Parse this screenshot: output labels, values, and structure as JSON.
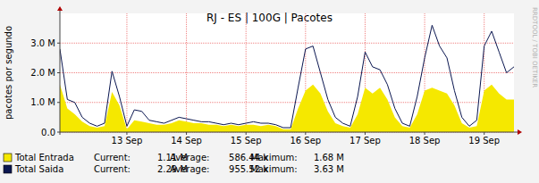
{
  "chart_data": {
    "type": "area",
    "title": "RJ - ES | 100G | Pacotes",
    "y_label": "pacotes por segundo",
    "side_text": "RRDTOOL / TOBI OETIKER",
    "categories": [
      null,
      null,
      null,
      null,
      null,
      null,
      null,
      null,
      null,
      "13 Sep",
      null,
      null,
      null,
      null,
      null,
      null,
      null,
      "14 Sep",
      null,
      null,
      null,
      null,
      null,
      null,
      null,
      "15 Sep",
      null,
      null,
      null,
      null,
      null,
      null,
      null,
      "16 Sep",
      null,
      null,
      null,
      null,
      null,
      null,
      null,
      "17 Sep",
      null,
      null,
      null,
      null,
      null,
      null,
      null,
      "18 Sep",
      null,
      null,
      null,
      null,
      null,
      null,
      null,
      "19 Sep",
      null,
      null,
      null,
      null
    ],
    "ylim": [
      0,
      4000000
    ],
    "yticks": [
      {
        "value": 0,
        "label": "0.0"
      },
      {
        "value": 1000000,
        "label": "1.0 M"
      },
      {
        "value": 2000000,
        "label": "2.0 M"
      },
      {
        "value": 3000000,
        "label": "3.0 M"
      }
    ],
    "grid": true,
    "legend": "bottom",
    "series": [
      {
        "name": "Total Entrada",
        "type": "area",
        "color": "#f5e800",
        "stats": [
          {
            "label": "Current:",
            "value": "1.11 M"
          },
          {
            "label": "Average:",
            "value": "586.44 k"
          },
          {
            "label": "Maximum:",
            "value": "1.68 M"
          }
        ],
        "values": [
          1600000,
          800000,
          600000,
          350000,
          200000,
          150000,
          200000,
          1350000,
          900000,
          100000,
          400000,
          350000,
          300000,
          250000,
          250000,
          300000,
          400000,
          350000,
          300000,
          300000,
          250000,
          250000,
          200000,
          250000,
          200000,
          250000,
          250000,
          200000,
          250000,
          200000,
          100000,
          100000,
          800000,
          1400000,
          1600000,
          1300000,
          700000,
          300000,
          200000,
          150000,
          600000,
          1500000,
          1300000,
          1500000,
          1100000,
          500000,
          200000,
          150000,
          600000,
          1400000,
          1500000,
          1400000,
          1300000,
          900000,
          300000,
          150000,
          200000,
          1400000,
          1600000,
          1300000,
          1100000,
          1100000
        ]
      },
      {
        "name": "Total Saida",
        "type": "line",
        "color": "#0a1650",
        "stats": [
          {
            "label": "Current:",
            "value": "2.29 M"
          },
          {
            "label": "Average:",
            "value": "955.52 k"
          },
          {
            "label": "Maximum:",
            "value": "3.63 M"
          }
        ],
        "values": [
          2800000,
          1100000,
          1000000,
          500000,
          300000,
          200000,
          300000,
          2050000,
          1200000,
          200000,
          750000,
          700000,
          400000,
          350000,
          300000,
          400000,
          500000,
          450000,
          400000,
          350000,
          350000,
          300000,
          250000,
          300000,
          250000,
          300000,
          350000,
          300000,
          300000,
          250000,
          150000,
          150000,
          1500000,
          2800000,
          2900000,
          2000000,
          1100000,
          500000,
          300000,
          200000,
          1200000,
          2700000,
          2200000,
          2100000,
          1600000,
          800000,
          300000,
          200000,
          1200000,
          2500000,
          3600000,
          2900000,
          2500000,
          1400000,
          500000,
          200000,
          400000,
          2900000,
          3400000,
          2700000,
          2000000,
          2200000
        ]
      }
    ]
  }
}
